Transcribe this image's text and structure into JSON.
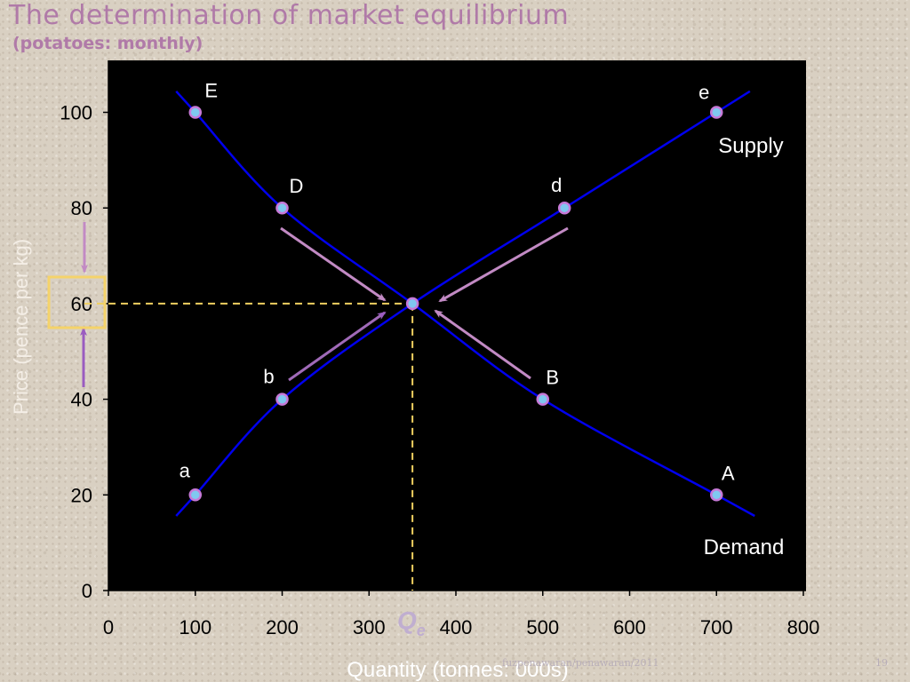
{
  "slide": {
    "title": "The determination of market equilibrium",
    "subtitle": "(potatoes: monthly)",
    "footer_left": "fuzpenawaran/penawaran/2011",
    "footer_right": "19"
  },
  "chart_data": {
    "type": "line",
    "xlabel": "Quantity (tonnes: 000s)",
    "ylabel": "Price (pence per kg)",
    "xlim": [
      0,
      800
    ],
    "ylim": [
      0,
      100
    ],
    "x_ticks": [
      0,
      100,
      200,
      300,
      400,
      500,
      600,
      700,
      800
    ],
    "y_ticks": [
      0,
      20,
      40,
      60,
      80,
      100
    ],
    "grid": false,
    "series": [
      {
        "name": "Supply",
        "color": "#0000ee",
        "points": [
          {
            "label": "a",
            "x": 100,
            "y": 20
          },
          {
            "label": "b",
            "x": 200,
            "y": 40
          },
          {
            "label": "",
            "x": 350,
            "y": 60
          },
          {
            "label": "d",
            "x": 525,
            "y": 80
          },
          {
            "label": "e",
            "x": 700,
            "y": 100
          }
        ]
      },
      {
        "name": "Demand",
        "color": "#0000ee",
        "points": [
          {
            "label": "E",
            "x": 100,
            "y": 100
          },
          {
            "label": "D",
            "x": 200,
            "y": 80
          },
          {
            "label": "",
            "x": 350,
            "y": 60
          },
          {
            "label": "B",
            "x": 500,
            "y": 40
          },
          {
            "label": "A",
            "x": 700,
            "y": 20
          }
        ]
      }
    ],
    "equilibrium": {
      "x": 350,
      "y": 60,
      "label": "Q",
      "subscript": "e"
    },
    "colors": {
      "plot_bg": "#000000",
      "curve": "#0000ee",
      "marker_fill": "#7fc8f0",
      "marker_edge": "#c77ad8",
      "arrow": "#c28ac4",
      "dashed": "#f0d060",
      "highlight_box": "#f5d36a",
      "ylabel": "#f4eee6",
      "xlabel": "#ffffff",
      "qe": "#c0aed0"
    }
  }
}
